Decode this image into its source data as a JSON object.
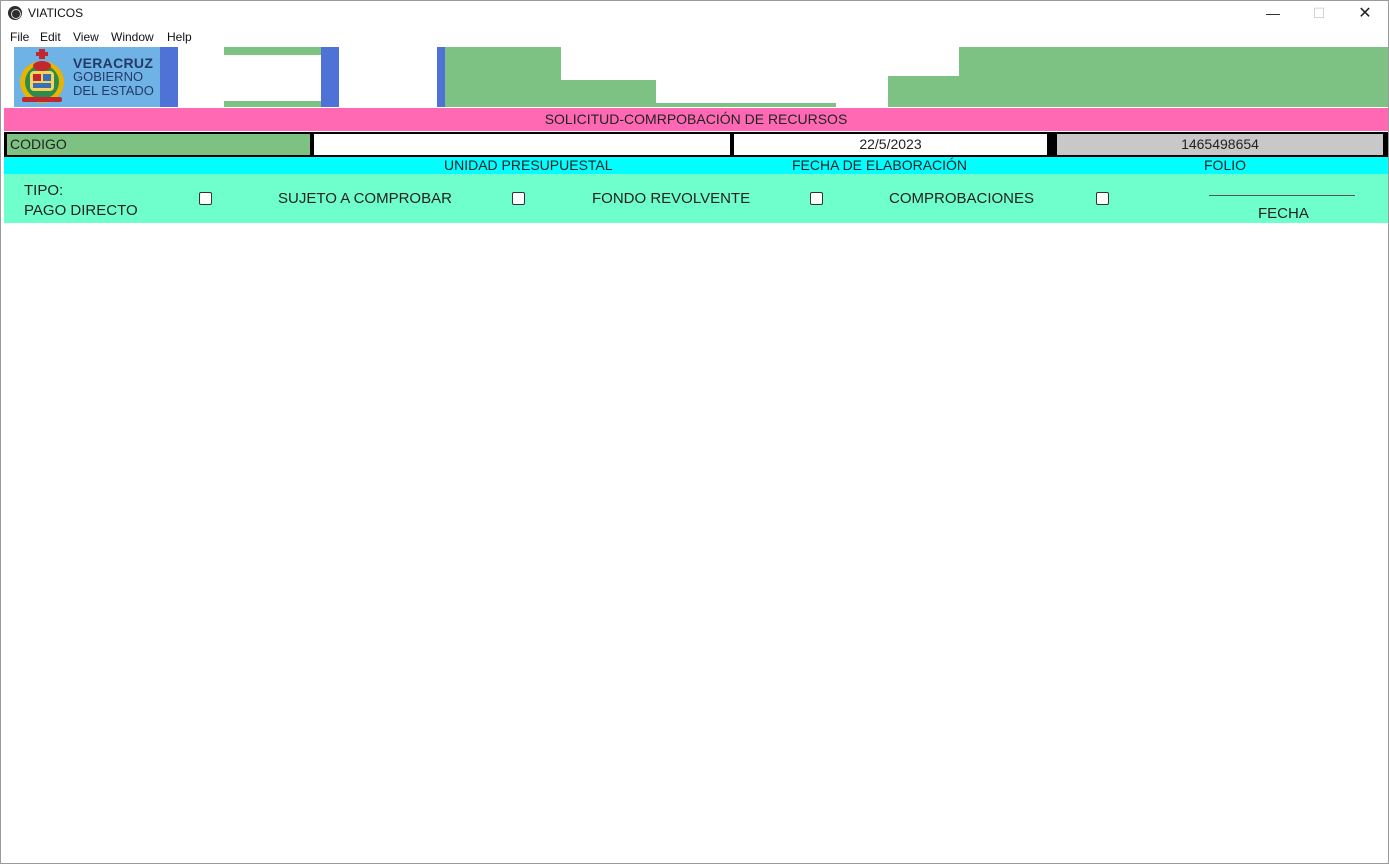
{
  "window": {
    "title": "VIATICOS",
    "min_glyph": "—",
    "max_glyph": "☐",
    "close_glyph": "✕"
  },
  "menu": {
    "file": "File",
    "edit": "Edit",
    "view": "View",
    "window": "Window",
    "help": "Help"
  },
  "logo": {
    "line1": "VERACRUZ",
    "line2": "GOBIERNO",
    "line3": "DEL ESTADO"
  },
  "header": {
    "title": "SOLICITUD-COMRPOBACIÓN DE RECURSOS"
  },
  "info": {
    "codigo_label": "CODIGO",
    "unidad_value": "",
    "fecha_value": "22/5/2023",
    "folio_value": "1465498654"
  },
  "labels": {
    "unidad": "UNIDAD PRESUPUESTAL",
    "fecha": "FECHA DE ELABORACIÓN",
    "folio": "FOLIO"
  },
  "tipo": {
    "label_line1": "TIPO:",
    "label_line2": "PAGO DIRECTO",
    "sujeto": "SUJETO A COMPROBAR",
    "fondo": "FONDO REVOLVENTE",
    "comprobaciones": "COMPROBACIONES",
    "fecha": "FECHA"
  },
  "colors": {
    "title_strip": "#ff69b4",
    "codigo_bg": "#7ec283",
    "labels_bg": "#00ffff",
    "tipo_bg": "#6fffcc",
    "folio_bg": "#c8c8c8",
    "banner_green": "#7ec283",
    "banner_blue": "#4f72d6",
    "logo_bg": "#6fb3e6"
  },
  "icons": {
    "app": "app-icon",
    "crest": "veracruz-crest-icon"
  }
}
